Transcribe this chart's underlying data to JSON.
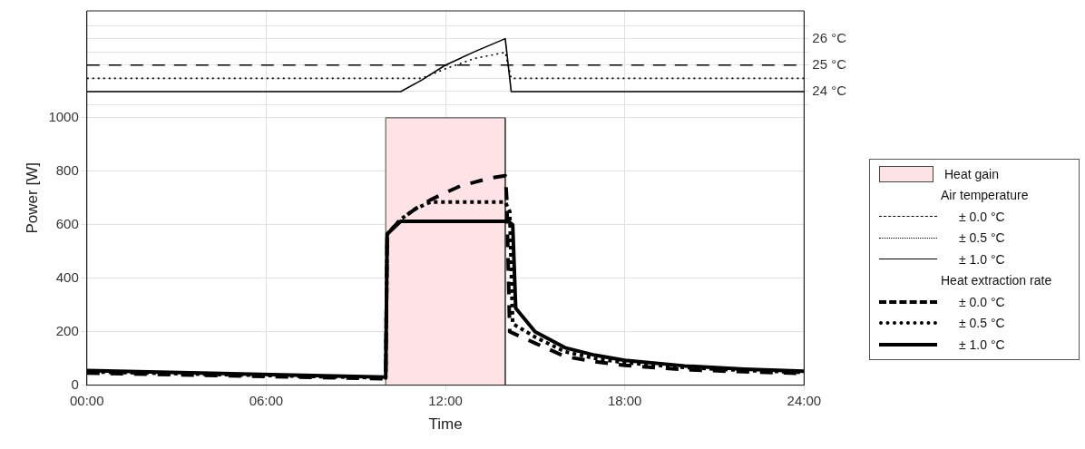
{
  "chart_data": {
    "type": "line",
    "xlabel": "Time",
    "ylabel": "Power [W]",
    "legend": "right",
    "grid": true,
    "xlim": [
      0,
      24
    ],
    "xticks": [
      {
        "value": 0,
        "label": "00:00"
      },
      {
        "value": 6,
        "label": "06:00"
      },
      {
        "value": 12,
        "label": "12:00"
      },
      {
        "value": 18,
        "label": "18:00"
      },
      {
        "value": 24,
        "label": "24:00"
      }
    ],
    "ylim": [
      0,
      1400
    ],
    "yticks": [
      0,
      200,
      400,
      600,
      800,
      1000
    ],
    "y2lim": [
      12.9,
      27.05
    ],
    "y2ticks": [
      {
        "value": 23.5,
        "label": null
      },
      {
        "value": 24,
        "label": "24 °C"
      },
      {
        "value": 24.5,
        "label": null
      },
      {
        "value": 25,
        "label": "25 °C"
      },
      {
        "value": 25.5,
        "label": null
      },
      {
        "value": 26,
        "label": "26 °C"
      },
      {
        "value": 26.5,
        "label": null
      }
    ],
    "annotations": [
      "Air temperature",
      "Heat extraction rate"
    ],
    "series": [
      {
        "name": "Heat gain",
        "type": "area",
        "color": "#fde3e5",
        "x": [
          10,
          10,
          14,
          14
        ],
        "values": [
          0,
          1000,
          1000,
          0
        ]
      },
      {
        "name": "± 0.0 °C",
        "type": "line",
        "axis": "y2",
        "line_style": "dashed",
        "color": "#000000",
        "x": [
          0,
          24
        ],
        "values": [
          25,
          25
        ]
      },
      {
        "name": "± 0.5 °C",
        "type": "line",
        "axis": "y2",
        "line_style": "dotted",
        "color": "#000000",
        "x": [
          0,
          11.2,
          12,
          13,
          14,
          14.2,
          24
        ],
        "values": [
          24.5,
          24.5,
          24.86,
          25.26,
          25.48,
          24.5,
          24.5
        ]
      },
      {
        "name": "± 1.0 °C",
        "type": "line",
        "axis": "y2",
        "line_style": "solid",
        "color": "#000000",
        "x": [
          0,
          10.5,
          11.2,
          12,
          13,
          14,
          14.2,
          24
        ],
        "values": [
          24,
          24,
          24.43,
          25,
          25.52,
          26,
          24,
          24
        ]
      },
      {
        "name": "± 0.0 °C",
        "type": "line",
        "axis": "y",
        "line_style": "dashed",
        "color": "#000000",
        "x": [
          0,
          10,
          10.05,
          10.5,
          11,
          11.5,
          12,
          12.5,
          13,
          13.5,
          14,
          14.05,
          14.15,
          15,
          16,
          17,
          18,
          20,
          22,
          24
        ],
        "values": [
          45,
          24,
          565,
          620,
          660,
          693,
          720,
          745,
          760,
          775,
          783,
          700,
          200,
          157,
          107,
          88,
          74,
          58,
          50,
          44
        ]
      },
      {
        "name": "± 0.5 °C",
        "type": "line",
        "axis": "y",
        "line_style": "dotted",
        "color": "#000000",
        "x": [
          0,
          10,
          10.05,
          10.5,
          11,
          11.5,
          14,
          14.15,
          14.25,
          15,
          16,
          17,
          18,
          20,
          22,
          24
        ],
        "values": [
          50,
          27,
          565,
          620,
          660,
          685,
          685,
          650,
          230,
          180,
          125,
          100,
          84,
          66,
          55,
          48
        ]
      },
      {
        "name": "± 1.0 °C",
        "type": "line",
        "axis": "y",
        "line_style": "solid",
        "color": "#000000",
        "x": [
          0,
          10,
          10.05,
          10.5,
          14.1,
          14.25,
          14.35,
          15,
          16,
          17,
          18,
          20,
          22,
          24
        ],
        "values": [
          55,
          30,
          565,
          613,
          613,
          600,
          288,
          200,
          140,
          112,
          93,
          72,
          60,
          52
        ]
      }
    ]
  }
}
